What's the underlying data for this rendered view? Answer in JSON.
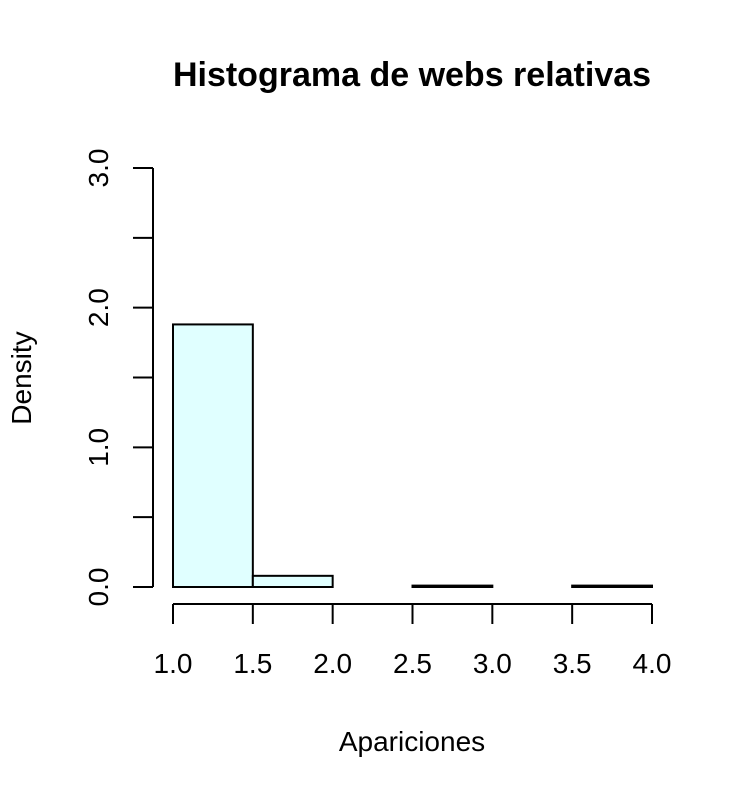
{
  "chart_data": {
    "type": "bar",
    "title": "Histograma de webs relativas",
    "xlabel": "Apariciones",
    "ylabel": "Density",
    "bins": [
      {
        "x0": 1.0,
        "x1": 1.5,
        "value": 1.88
      },
      {
        "x0": 1.5,
        "x1": 2.0,
        "value": 0.08
      },
      {
        "x0": 2.0,
        "x1": 2.5,
        "value": 0.0
      },
      {
        "x0": 2.5,
        "x1": 3.0,
        "value": 0.01
      },
      {
        "x0": 3.0,
        "x1": 3.5,
        "value": 0.0
      },
      {
        "x0": 3.5,
        "x1": 4.0,
        "value": 0.01
      }
    ],
    "xlim": [
      1.0,
      4.0
    ],
    "ylim": [
      0,
      3.0
    ],
    "x_ticks": [
      "1.0",
      "1.5",
      "2.0",
      "2.5",
      "3.0",
      "3.5",
      "4.0"
    ],
    "y_ticks": [
      0,
      0.5,
      1.0,
      1.5,
      2.0,
      2.5,
      3.0
    ],
    "y_tick_labels": [
      "0.0",
      "1.0",
      "2.0",
      "3.0"
    ],
    "bar_fill": "#e0ffff",
    "bar_stroke": "#000000",
    "grid": false,
    "legend": "none"
  }
}
